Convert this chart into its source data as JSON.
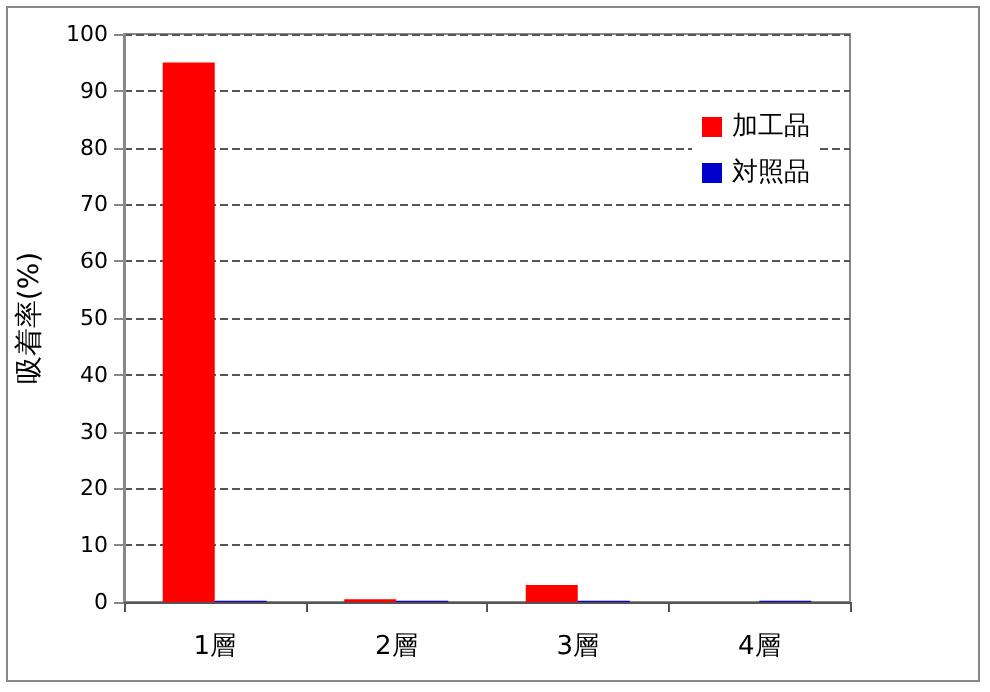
{
  "chart_data": {
    "type": "bar",
    "ylabel": "吸着率(%)",
    "categories": [
      "1層",
      "2層",
      "3層",
      "4層"
    ],
    "series": [
      {
        "name": "加工品",
        "color": "#ff0000",
        "values": [
          95,
          0.5,
          3,
          0
        ]
      },
      {
        "name": "対照品",
        "color": "#0000cc",
        "values": [
          0.2,
          0.2,
          0.2,
          0.2
        ]
      }
    ],
    "ylim": [
      0,
      100
    ],
    "yticks": [
      0,
      10,
      20,
      30,
      40,
      50,
      60,
      70,
      80,
      90,
      100
    ],
    "grid": "y",
    "legend": "top right"
  }
}
